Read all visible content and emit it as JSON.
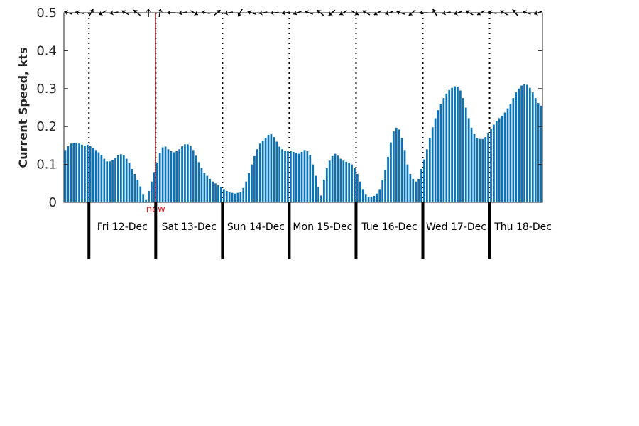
{
  "chart_data": {
    "type": "bar",
    "title": "",
    "ylabel": "Current Speed, kts",
    "ylim": [
      0,
      0.5
    ],
    "yticks": [
      "0",
      "0.1",
      "0.2",
      "0.3",
      "0.4",
      "0.5"
    ],
    "bar_color": "#0b72b5",
    "now_color": "#e8141b",
    "grid": false,
    "days": [
      "Fri 12-Dec",
      "Sat 13-Dec",
      "Sun 14-Dec",
      "Mon 15-Dec",
      "Tue 16-Dec",
      "Wed 17-Dec",
      "Thu 18-Dec"
    ],
    "now_label": "now",
    "hours_per_bar": 1,
    "start_hour_before_first_day": 9,
    "now_hour_after_first_day": 24,
    "values": [
      0.138,
      0.148,
      0.155,
      0.157,
      0.157,
      0.155,
      0.152,
      0.15,
      0.152,
      0.148,
      0.144,
      0.138,
      0.132,
      0.125,
      0.115,
      0.108,
      0.108,
      0.112,
      0.118,
      0.124,
      0.127,
      0.124,
      0.115,
      0.103,
      0.088,
      0.075,
      0.06,
      0.042,
      0.022,
      0.008,
      0.03,
      0.055,
      0.08,
      0.105,
      0.13,
      0.145,
      0.147,
      0.14,
      0.135,
      0.132,
      0.135,
      0.14,
      0.148,
      0.153,
      0.153,
      0.148,
      0.138,
      0.123,
      0.106,
      0.09,
      0.078,
      0.07,
      0.062,
      0.055,
      0.05,
      0.045,
      0.04,
      0.035,
      0.03,
      0.028,
      0.025,
      0.023,
      0.025,
      0.028,
      0.038,
      0.055,
      0.077,
      0.1,
      0.122,
      0.14,
      0.155,
      0.163,
      0.17,
      0.178,
      0.18,
      0.172,
      0.16,
      0.147,
      0.14,
      0.136,
      0.135,
      0.135,
      0.133,
      0.13,
      0.128,
      0.133,
      0.138,
      0.135,
      0.125,
      0.1,
      0.07,
      0.04,
      0.018,
      0.06,
      0.09,
      0.11,
      0.122,
      0.128,
      0.123,
      0.115,
      0.11,
      0.107,
      0.105,
      0.1,
      0.09,
      0.075,
      0.055,
      0.035,
      0.022,
      0.015,
      0.015,
      0.017,
      0.023,
      0.035,
      0.06,
      0.085,
      0.12,
      0.158,
      0.187,
      0.197,
      0.192,
      0.17,
      0.138,
      0.1,
      0.075,
      0.062,
      0.055,
      0.062,
      0.088,
      0.113,
      0.14,
      0.17,
      0.198,
      0.222,
      0.243,
      0.26,
      0.275,
      0.287,
      0.296,
      0.302,
      0.306,
      0.305,
      0.295,
      0.275,
      0.25,
      0.222,
      0.197,
      0.18,
      0.17,
      0.167,
      0.167,
      0.172,
      0.182,
      0.193,
      0.205,
      0.215,
      0.222,
      0.228,
      0.237,
      0.248,
      0.26,
      0.275,
      0.29,
      0.3,
      0.308,
      0.312,
      0.31,
      0.302,
      0.29,
      0.275,
      0.262,
      0.255
    ],
    "arrow_angles_deg": [
      200,
      190,
      300,
      150,
      170,
      210,
      220,
      270,
      280,
      180,
      170,
      30,
      190,
      320,
      170,
      120,
      200,
      170,
      175,
      170,
      160,
      200,
      220,
      140,
      150,
      30,
      210,
      150,
      160,
      200,
      140,
      180,
      240,
      170,
      160,
      210,
      150,
      190,
      210,
      230,
      200,
      160
    ]
  }
}
